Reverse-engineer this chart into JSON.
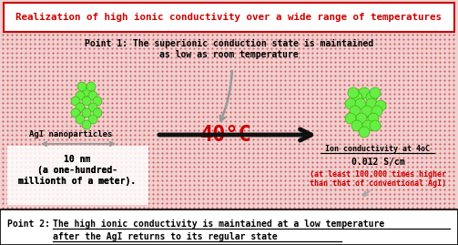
{
  "bg_dot_color": "#cc3333",
  "bg_base_color": "#f0d0d0",
  "title_text": "Realization of high ionic conductivity over a wide range of temperatures",
  "title_color": "#cc0000",
  "title_box_color": "#ffffff",
  "title_border_color": "#cc0000",
  "point1_line1": "Point 1: The superionic conduction state is maintained",
  "point1_line2": "as low as room temperature",
  "agl_label": "AgI nanoparticles",
  "temp_label": "40°C",
  "size_label_1": "10 nm",
  "size_label_2": "(a one-hundred-",
  "size_label_3": "millionth of a meter).",
  "ion_cond_title": "Ion conductivity at 4oC",
  "ion_cond_value": "0.012 S/cm",
  "ion_cond_detail1": "(at least 100,000 times higher",
  "ion_cond_detail2": "than that of conventional AgI)",
  "point2_prefix": "Point 2: ",
  "point2_underline1": "The high ionic conductivity is maintained at a low temperature",
  "point2_underline2": "after the AgI returns to its regular state",
  "bottom_bg": "#ffffff",
  "green_color": "#66ee44",
  "green_edge": "#33aa00",
  "arrow_color": "#111111",
  "gray_color": "#999999",
  "red_text_color": "#cc0000",
  "black_text": "#000000",
  "white": "#ffffff"
}
